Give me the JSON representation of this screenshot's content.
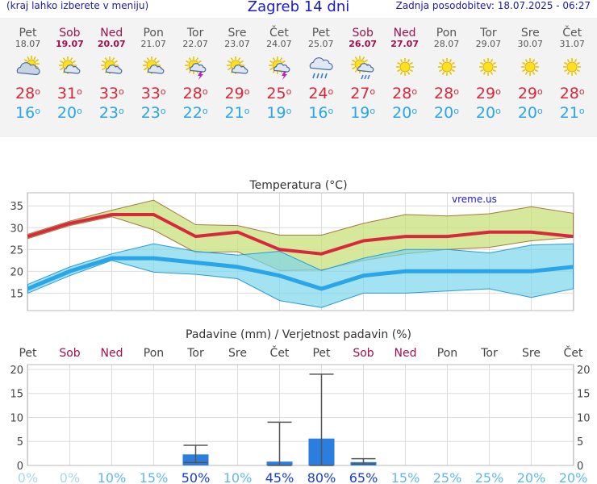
{
  "header": {
    "menu_hint": "(kraj lahko izberete v meniju)",
    "title": "Zagreb 14 dni",
    "updated": "Zadnja posodobitev: 18.07.2025 - 06:27"
  },
  "days": [
    {
      "name": "Pet",
      "date": "18.07",
      "weekend": false,
      "icon": "partly-cloudy-icon",
      "tmax": "28",
      "tmin": "16"
    },
    {
      "name": "Sob",
      "date": "19.07",
      "weekend": true,
      "icon": "sun-cloud-icon",
      "tmax": "31",
      "tmin": "20"
    },
    {
      "name": "Ned",
      "date": "20.07",
      "weekend": true,
      "icon": "sun-cloud-icon",
      "tmax": "33",
      "tmin": "23"
    },
    {
      "name": "Pon",
      "date": "21.07",
      "weekend": false,
      "icon": "sun-cloud-icon",
      "tmax": "33",
      "tmin": "23"
    },
    {
      "name": "Tor",
      "date": "22.07",
      "weekend": false,
      "icon": "sun-cloud-storm-icon",
      "tmax": "28",
      "tmin": "22"
    },
    {
      "name": "Sre",
      "date": "23.07",
      "weekend": false,
      "icon": "sun-cloud-icon",
      "tmax": "29",
      "tmin": "21"
    },
    {
      "name": "Čet",
      "date": "24.07",
      "weekend": false,
      "icon": "sun-cloud-storm-icon",
      "tmax": "25",
      "tmin": "19"
    },
    {
      "name": "Pet",
      "date": "25.07",
      "weekend": false,
      "icon": "rain-cloud-icon",
      "tmax": "24",
      "tmin": "16"
    },
    {
      "name": "Sob",
      "date": "26.07",
      "weekend": true,
      "icon": "sun-rain-icon",
      "tmax": "27",
      "tmin": "19"
    },
    {
      "name": "Ned",
      "date": "27.07",
      "weekend": true,
      "icon": "sun-icon",
      "tmax": "28",
      "tmin": "20"
    },
    {
      "name": "Pon",
      "date": "28.07",
      "weekend": false,
      "icon": "sun-icon",
      "tmax": "28",
      "tmin": "20"
    },
    {
      "name": "Tor",
      "date": "29.07",
      "weekend": false,
      "icon": "sun-icon",
      "tmax": "29",
      "tmin": "20"
    },
    {
      "name": "Sre",
      "date": "30.07",
      "weekend": false,
      "icon": "sun-icon",
      "tmax": "29",
      "tmin": "20"
    },
    {
      "name": "Čet",
      "date": "31.07",
      "weekend": false,
      "icon": "sun-icon",
      "tmax": "28",
      "tmin": "21"
    }
  ],
  "degree": "o",
  "colors": {
    "max": "#d8283c",
    "min": "#2aa6e8",
    "title": "#1a1ad0",
    "weekend": "#a01050",
    "bar": "#2b7ee0"
  },
  "chart_data": [
    {
      "type": "line",
      "title": "Temperatura (°C)",
      "watermark": "vreme.us",
      "ylim": [
        11,
        38
      ],
      "yticks": [
        15,
        20,
        25,
        30,
        35
      ],
      "x": [
        "Pet",
        "Sob",
        "Ned",
        "Pon",
        "Tor",
        "Sre",
        "Čet",
        "Pet",
        "Sob",
        "Ned",
        "Pon",
        "Tor",
        "Sre",
        "Čet"
      ],
      "grid": true,
      "series": [
        {
          "color": "#d8283c",
          "values": [
            28,
            31,
            33,
            33,
            28,
            29,
            25,
            24,
            27,
            28,
            28,
            29,
            29,
            28
          ]
        },
        {
          "color": "#2aa6e8",
          "values": [
            16,
            20,
            23,
            23,
            22,
            21,
            19,
            16,
            19,
            20,
            20,
            20,
            20,
            21
          ]
        }
      ],
      "bands": [
        {
          "color": "#c8e07a",
          "upper": [
            28.5,
            31.5,
            34,
            36.3,
            30.7,
            30.5,
            28.3,
            28.3,
            31,
            33,
            32.7,
            33.2,
            34.8,
            33.3
          ],
          "lower": [
            27.5,
            30.5,
            32.5,
            29.5,
            24.3,
            24.5,
            20.2,
            20.3,
            22.5,
            24,
            25,
            25.5,
            27,
            27.8
          ]
        },
        {
          "color": "#7cd6ea",
          "upper": [
            17,
            21,
            24,
            26.3,
            24.6,
            23.7,
            24.6,
            20.2,
            23,
            25,
            25,
            24.2,
            26,
            26.3
          ],
          "lower": [
            15,
            19,
            22.5,
            19.8,
            19.3,
            18.3,
            13.3,
            11.7,
            15,
            15,
            15.5,
            16,
            14,
            16
          ]
        }
      ]
    },
    {
      "type": "bar",
      "title": "Padavine (mm) / Verjetnost padavin (%)",
      "categories": [
        "Pet",
        "Sob",
        "Ned",
        "Pon",
        "Tor",
        "Sre",
        "Čet",
        "Pet",
        "Sob",
        "Ned",
        "Pon",
        "Tor",
        "Sre",
        "Čet"
      ],
      "values": [
        0,
        0,
        0,
        0,
        2.3,
        0,
        0.8,
        5.6,
        0.7,
        0,
        0,
        0,
        0,
        0
      ],
      "error_high": [
        0,
        0,
        0,
        0,
        4.2,
        0,
        9,
        19,
        1.4,
        0,
        0,
        0,
        0,
        0
      ],
      "error_low": [
        0,
        0,
        0,
        0,
        0.6,
        0,
        0,
        0,
        0.3,
        0,
        0,
        0,
        0,
        0
      ],
      "probability": [
        "0%",
        "0%",
        "10%",
        "15%",
        "50%",
        "10%",
        "45%",
        "80%",
        "65%",
        "15%",
        "25%",
        "25%",
        "20%",
        "20%"
      ],
      "prob_values": [
        0,
        0,
        10,
        15,
        50,
        10,
        45,
        80,
        65,
        15,
        25,
        25,
        20,
        20
      ],
      "ylim": [
        0,
        21
      ],
      "yticks": [
        0,
        5,
        10,
        15,
        20
      ],
      "grid": true
    }
  ]
}
